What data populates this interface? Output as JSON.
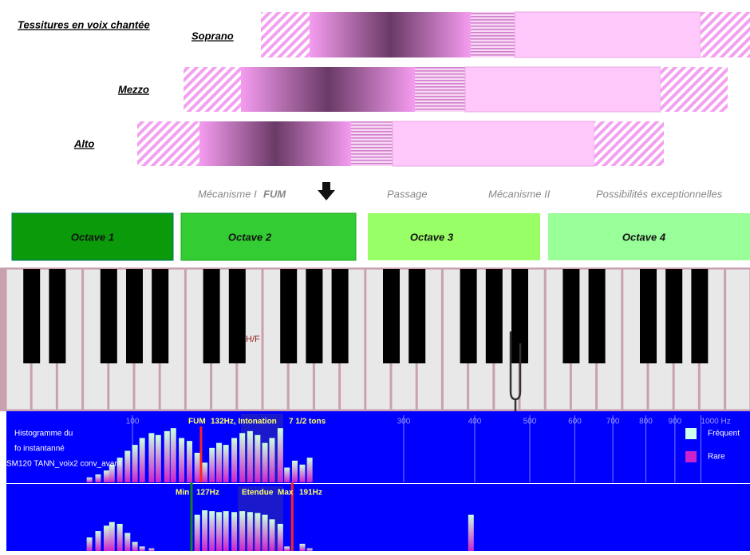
{
  "header": {
    "title": "Tessitures en voix chantée"
  },
  "voices": [
    {
      "label": "Soprano"
    },
    {
      "label": "Mezzo"
    },
    {
      "label": "Alto"
    }
  ],
  "mechanisms": {
    "m1": "Mécanisme I",
    "fum": "FUM",
    "passage": "Passage",
    "m2": "Mécanisme II",
    "exceptional": "Possibilités exceptionnelles"
  },
  "octaves": [
    "Octave 1",
    "Octave 2",
    "Octave 3",
    "Octave 4"
  ],
  "piano": {
    "marker": "H/F"
  },
  "histogram1": {
    "title_lines": [
      "Histogramme du",
      "fo instantanné",
      "SM120 TANN_voix2 conv_avant"
    ],
    "fum": {
      "label": "FUM",
      "hz": 132,
      "hz_label": "132Hz, Intonation"
    },
    "tones": "7 1/2 tons",
    "xlim": [
      60,
      1220
    ],
    "log": true,
    "xticks": [
      100,
      300,
      400,
      500,
      600,
      700,
      800,
      900,
      {
        "value": 1000,
        "label": "1000 Hz"
      }
    ],
    "legend": [
      "Fréquent",
      "Rare"
    ],
    "ylim": [
      0,
      60
    ],
    "freqs": [
      84,
      87,
      90,
      92,
      95,
      98,
      101,
      104,
      108,
      111,
      115,
      118,
      122,
      126,
      130,
      134,
      138,
      142,
      146,
      151,
      156,
      161,
      166,
      171,
      176,
      182,
      187,
      193,
      199,
      205
    ],
    "counts": [
      5,
      8,
      12,
      18,
      25,
      32,
      38,
      45,
      50,
      48,
      52,
      55,
      45,
      42,
      30,
      20,
      35,
      40,
      38,
      45,
      50,
      52,
      48,
      40,
      45,
      55,
      15,
      22,
      18,
      25
    ]
  },
  "histogram2": {
    "min": {
      "label": "Min",
      "hz": 127,
      "hz_label": "127Hz"
    },
    "range": "Etendue",
    "max": {
      "label": "Max",
      "hz": 191,
      "hz_label": "191Hz"
    },
    "ylim": [
      0,
      60
    ],
    "freqs": [
      84,
      87,
      90,
      92,
      95,
      98,
      101,
      104,
      108,
      111,
      115,
      118,
      122,
      126,
      130,
      134,
      138,
      142,
      146,
      151,
      156,
      161,
      166,
      171,
      176,
      182,
      187,
      193,
      199,
      205,
      394
    ],
    "counts": [
      15,
      22,
      28,
      32,
      30,
      20,
      10,
      5,
      3,
      0,
      0,
      0,
      0,
      0,
      40,
      45,
      44,
      43,
      44,
      43,
      44,
      43,
      42,
      40,
      35,
      30,
      5,
      0,
      8,
      3,
      40
    ]
  }
}
